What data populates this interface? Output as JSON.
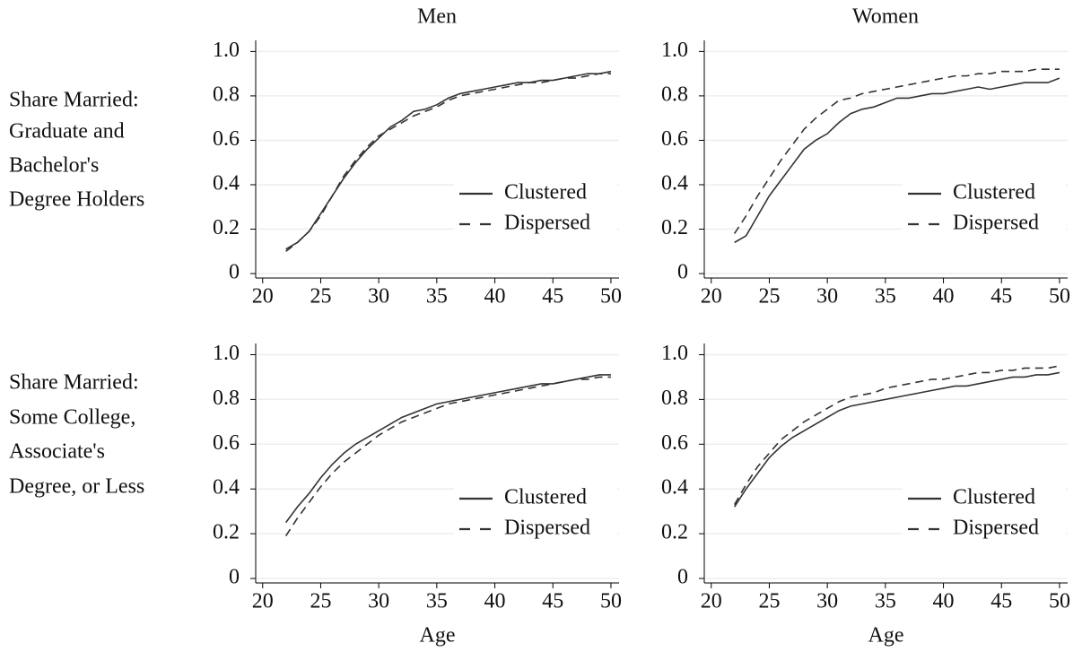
{
  "column_titles": [
    "Men",
    "Women"
  ],
  "row_labels": [
    [
      "Share Married:",
      "Graduate and",
      "Bachelor's",
      "Degree Holders"
    ],
    [
      "Share Married:",
      "Some College,",
      "Associate's",
      "Degree, or Less"
    ]
  ],
  "chart_data": [
    {
      "type": "line",
      "x": [
        22,
        23,
        24,
        25,
        26,
        27,
        28,
        29,
        30,
        31,
        32,
        33,
        34,
        35,
        36,
        37,
        38,
        39,
        40,
        41,
        42,
        43,
        44,
        45,
        46,
        47,
        48,
        49,
        50
      ],
      "series": [
        {
          "name": "Clustered",
          "color": "#333333",
          "line_style": "solid",
          "values": [
            0.11,
            0.14,
            0.19,
            0.27,
            0.35,
            0.43,
            0.5,
            0.56,
            0.61,
            0.66,
            0.69,
            0.73,
            0.74,
            0.76,
            0.79,
            0.81,
            0.82,
            0.83,
            0.84,
            0.85,
            0.86,
            0.86,
            0.87,
            0.87,
            0.88,
            0.89,
            0.9,
            0.9,
            0.91
          ]
        },
        {
          "name": "Dispersed",
          "color": "#333333",
          "line_style": "dashed",
          "values": [
            0.1,
            0.14,
            0.19,
            0.26,
            0.35,
            0.44,
            0.51,
            0.57,
            0.62,
            0.65,
            0.68,
            0.71,
            0.73,
            0.75,
            0.78,
            0.8,
            0.81,
            0.82,
            0.83,
            0.84,
            0.85,
            0.86,
            0.86,
            0.87,
            0.88,
            0.88,
            0.89,
            0.9,
            0.9
          ]
        }
      ],
      "xlim": [
        19.4,
        50.7
      ],
      "ylim": [
        -0.02,
        1.05
      ],
      "xticks": [
        20,
        25,
        30,
        35,
        40,
        45,
        50
      ],
      "yticks": [
        0,
        0.2,
        0.4,
        0.6,
        0.8,
        {
          "value": 1,
          "label": "1.0"
        }
      ],
      "grid": true,
      "legend": "lower right"
    },
    {
      "type": "line",
      "x": [
        22,
        23,
        24,
        25,
        26,
        27,
        28,
        29,
        30,
        31,
        32,
        33,
        34,
        35,
        36,
        37,
        38,
        39,
        40,
        41,
        42,
        43,
        44,
        45,
        46,
        47,
        48,
        49,
        50
      ],
      "series": [
        {
          "name": "Clustered",
          "color": "#333333",
          "line_style": "solid",
          "values": [
            0.14,
            0.17,
            0.26,
            0.35,
            0.42,
            0.49,
            0.56,
            0.6,
            0.63,
            0.68,
            0.72,
            0.74,
            0.75,
            0.77,
            0.79,
            0.79,
            0.8,
            0.81,
            0.81,
            0.82,
            0.83,
            0.84,
            0.83,
            0.84,
            0.85,
            0.86,
            0.86,
            0.86,
            0.88
          ]
        },
        {
          "name": "Dispersed",
          "color": "#333333",
          "line_style": "dashed",
          "values": [
            0.18,
            0.26,
            0.35,
            0.43,
            0.51,
            0.58,
            0.65,
            0.7,
            0.74,
            0.78,
            0.79,
            0.81,
            0.82,
            0.83,
            0.84,
            0.85,
            0.86,
            0.87,
            0.88,
            0.89,
            0.89,
            0.9,
            0.9,
            0.91,
            0.91,
            0.91,
            0.92,
            0.92,
            0.92
          ]
        }
      ],
      "xlim": [
        19.4,
        50.7
      ],
      "ylim": [
        -0.02,
        1.05
      ],
      "xticks": [
        20,
        25,
        30,
        35,
        40,
        45,
        50
      ],
      "yticks": [
        0,
        0.2,
        0.4,
        0.6,
        0.8,
        {
          "value": 1,
          "label": "1.0"
        }
      ],
      "grid": true,
      "legend": "lower right"
    },
    {
      "type": "line",
      "x": [
        22,
        23,
        24,
        25,
        26,
        27,
        28,
        29,
        30,
        31,
        32,
        33,
        34,
        35,
        36,
        37,
        38,
        39,
        40,
        41,
        42,
        43,
        44,
        45,
        46,
        47,
        48,
        49,
        50
      ],
      "series": [
        {
          "name": "Clustered",
          "color": "#333333",
          "line_style": "solid",
          "values": [
            0.25,
            0.32,
            0.38,
            0.45,
            0.51,
            0.56,
            0.6,
            0.63,
            0.66,
            0.69,
            0.72,
            0.74,
            0.76,
            0.78,
            0.79,
            0.8,
            0.81,
            0.82,
            0.83,
            0.84,
            0.85,
            0.86,
            0.87,
            0.87,
            0.88,
            0.89,
            0.9,
            0.91,
            0.91
          ]
        },
        {
          "name": "Dispersed",
          "color": "#333333",
          "line_style": "dashed",
          "values": [
            0.19,
            0.27,
            0.34,
            0.41,
            0.47,
            0.52,
            0.56,
            0.6,
            0.64,
            0.67,
            0.7,
            0.72,
            0.74,
            0.76,
            0.78,
            0.79,
            0.8,
            0.81,
            0.82,
            0.83,
            0.84,
            0.85,
            0.86,
            0.87,
            0.88,
            0.89,
            0.89,
            0.9,
            0.9
          ]
        }
      ],
      "x_label": "Age",
      "xlim": [
        19.4,
        50.7
      ],
      "ylim": [
        -0.02,
        1.05
      ],
      "xticks": [
        20,
        25,
        30,
        35,
        40,
        45,
        50
      ],
      "yticks": [
        0,
        0.2,
        0.4,
        0.6,
        0.8,
        {
          "value": 1,
          "label": "1.0"
        }
      ],
      "grid": true,
      "legend": "lower right"
    },
    {
      "type": "line",
      "x": [
        22,
        23,
        24,
        25,
        26,
        27,
        28,
        29,
        30,
        31,
        32,
        33,
        34,
        35,
        36,
        37,
        38,
        39,
        40,
        41,
        42,
        43,
        44,
        45,
        46,
        47,
        48,
        49,
        50
      ],
      "series": [
        {
          "name": "Clustered",
          "color": "#333333",
          "line_style": "solid",
          "values": [
            0.32,
            0.4,
            0.47,
            0.54,
            0.59,
            0.63,
            0.66,
            0.69,
            0.72,
            0.75,
            0.77,
            0.78,
            0.79,
            0.8,
            0.81,
            0.82,
            0.83,
            0.84,
            0.85,
            0.86,
            0.86,
            0.87,
            0.88,
            0.89,
            0.9,
            0.9,
            0.91,
            0.91,
            0.92
          ]
        },
        {
          "name": "Dispersed",
          "color": "#333333",
          "line_style": "dashed",
          "values": [
            0.33,
            0.42,
            0.5,
            0.56,
            0.62,
            0.66,
            0.7,
            0.73,
            0.76,
            0.79,
            0.81,
            0.82,
            0.83,
            0.85,
            0.86,
            0.87,
            0.88,
            0.89,
            0.89,
            0.9,
            0.91,
            0.92,
            0.92,
            0.93,
            0.93,
            0.94,
            0.94,
            0.94,
            0.95
          ]
        }
      ],
      "x_label": "Age",
      "xlim": [
        19.4,
        50.7
      ],
      "ylim": [
        -0.02,
        1.05
      ],
      "xticks": [
        20,
        25,
        30,
        35,
        40,
        45,
        50
      ],
      "yticks": [
        0,
        0.2,
        0.4,
        0.6,
        0.8,
        {
          "value": 1,
          "label": "1.0"
        }
      ],
      "grid": true,
      "legend": "lower right"
    }
  ]
}
